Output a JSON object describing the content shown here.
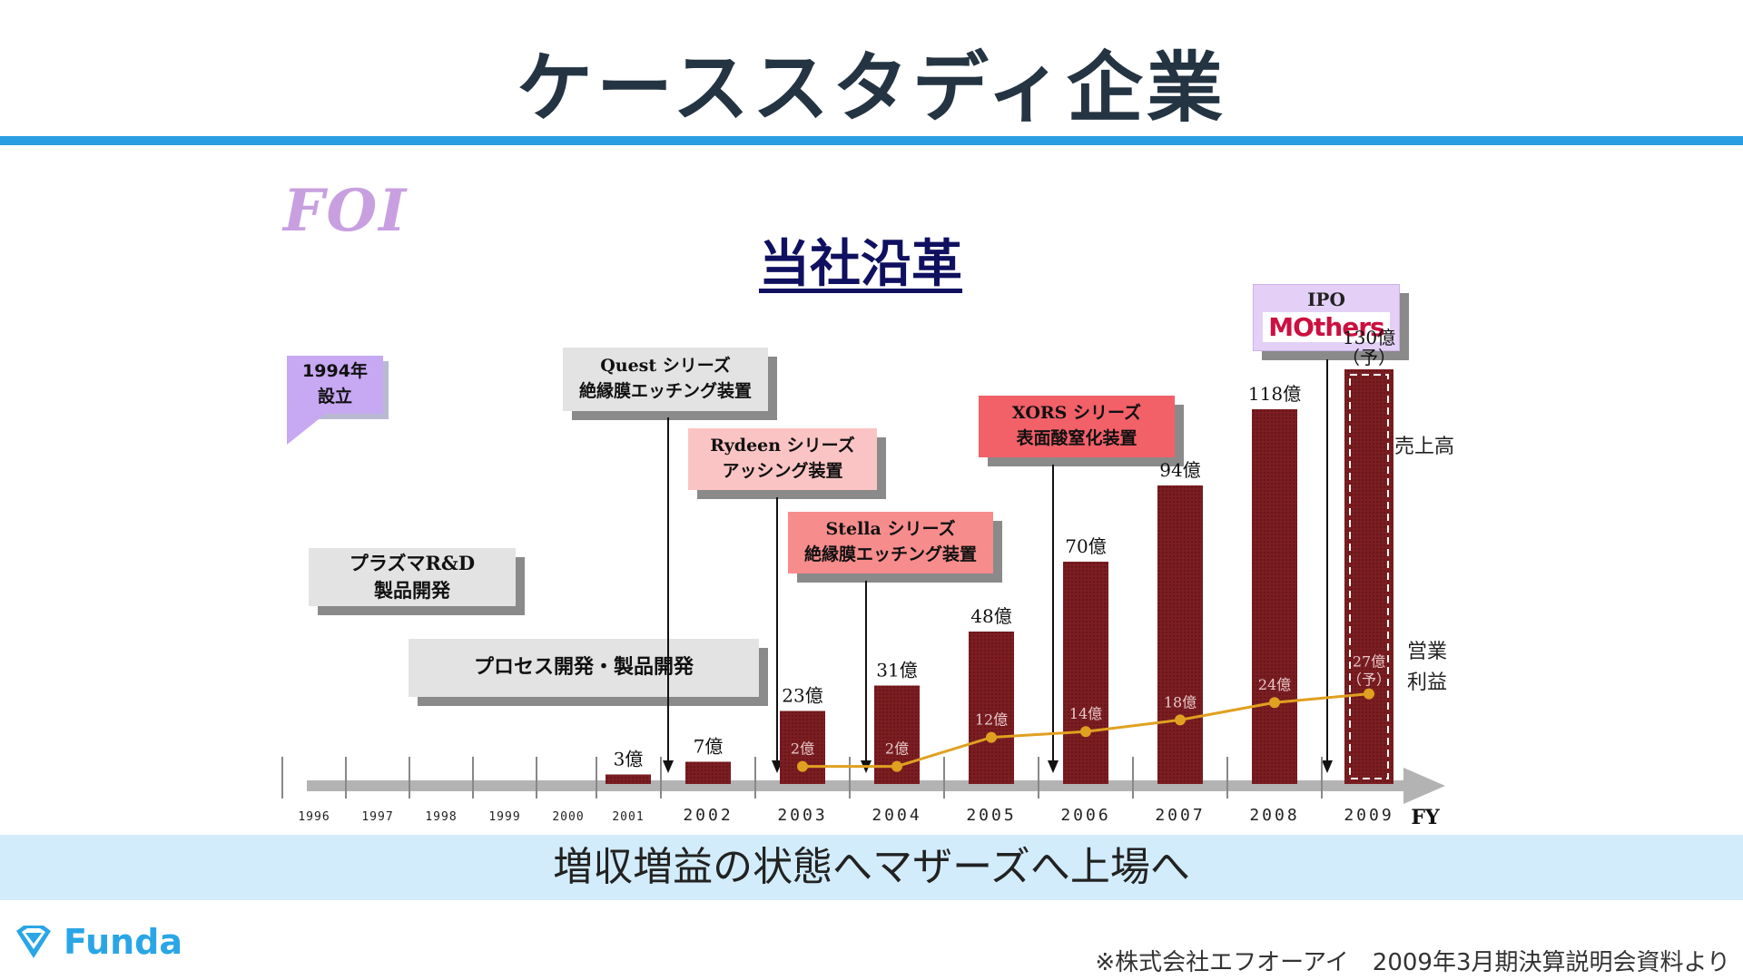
{
  "page": {
    "title": "ケーススタディ企業",
    "banner": "増収増益の状態へマザーズへ上場へ",
    "source": "※株式会社エフオーアイ　2009年3月期決算説明会資料より",
    "logo_text": "Funda"
  },
  "slide": {
    "company_logo": "FOI",
    "heading": "当社沿革",
    "founded_line1": "1994年",
    "founded_line2": "設立",
    "ipo_label": "IPO",
    "ipo_market": "MOthers",
    "boxes": {
      "plasma_line1": "プラズマR&D",
      "plasma_line2": "製品開発",
      "process": "プロセス開発・製品開発",
      "quest_line1": "Quest シリーズ",
      "quest_line2": "絶縁膜エッチング装置",
      "rydeen_line1": "Rydeen シリーズ",
      "rydeen_line2": "アッシング装置",
      "stella_line1": "Stella シリーズ",
      "stella_line2": "絶縁膜エッチング装置",
      "xors_line1": "XORS シリーズ",
      "xors_line2": "表面酸窒化装置"
    }
  },
  "chart_data": {
    "type": "bar",
    "x_axis_label": "FY",
    "years": [
      "1996",
      "1997",
      "1998",
      "1999",
      "2000",
      "2001",
      "2002",
      "2003",
      "2004",
      "2005",
      "2006",
      "2007",
      "2008",
      "2009"
    ],
    "series": [
      {
        "name": "売上高",
        "type": "bar",
        "categories": [
          "2001",
          "2002",
          "2003",
          "2004",
          "2005",
          "2006",
          "2007",
          "2008",
          "2009"
        ],
        "values": [
          3,
          7,
          23,
          31,
          48,
          70,
          94,
          118,
          130
        ],
        "labels": [
          "3億",
          "7億",
          "23億",
          "31億",
          "48億",
          "70億",
          "94億",
          "118億",
          "130億"
        ],
        "forecast_label": "（予）",
        "color": "#7a1e22"
      },
      {
        "name": "営業利益",
        "name_line1": "営業",
        "name_line2": "利益",
        "type": "line",
        "categories": [
          "2003",
          "2004",
          "2005",
          "2006",
          "2007",
          "2008",
          "2009"
        ],
        "values": [
          2,
          2,
          12,
          14,
          18,
          24,
          27
        ],
        "labels": [
          "2億",
          "2億",
          "12億",
          "14億",
          "18億",
          "24億",
          "27億"
        ],
        "forecast_label": "（予）",
        "color": "#e0a020"
      }
    ],
    "forecast_year": "2009",
    "unit": "億"
  }
}
